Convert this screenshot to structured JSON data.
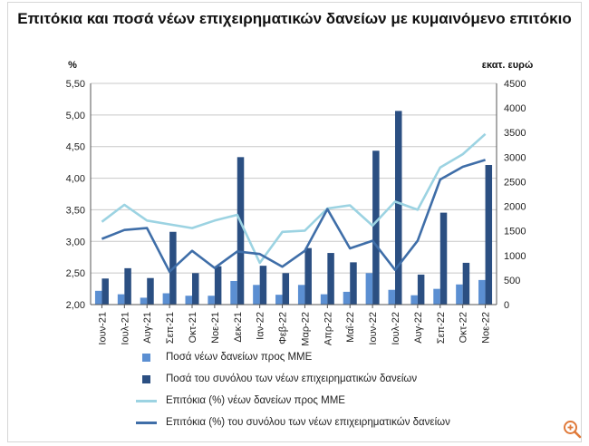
{
  "title": "Επιτόκια και ποσά νέων επιχειρηματικών δανείων με κυμαινόμενο επιτόκιο",
  "left_unit": "%",
  "right_unit": "εκατ. ευρώ",
  "zoom_icon": "zoom-in-icon",
  "chart_data": {
    "type": "bar-line-combo",
    "categories": [
      "Ιουν-21",
      "Ιουλ-21",
      "Αυγ-21",
      "Σεπ-21",
      "Οκτ-21",
      "Νοε-21",
      "Δεκ-21",
      "Ιαν-22",
      "Φεβ-22",
      "Μαρ-22",
      "Απρ-22",
      "Μαΐ-22",
      "Ιουν-22",
      "Ιουλ-22",
      "Αυγ-22",
      "Σεπ-22",
      "Οκτ-22",
      "Νοε-22"
    ],
    "left_axis": {
      "ylim": [
        2.0,
        5.5
      ],
      "ticks": [
        "2,00",
        "2,50",
        "3,00",
        "3,50",
        "4,00",
        "4,50",
        "5,00",
        "5,50"
      ]
    },
    "right_axis": {
      "ylim": [
        0,
        4500
      ],
      "ticks": [
        "0",
        "500",
        "1000",
        "1500",
        "2000",
        "2500",
        "3000",
        "3500",
        "4000",
        "4500"
      ]
    },
    "series": [
      {
        "name": "Ποσά νέων δανείων προς ΜΜΕ",
        "kind": "bar",
        "axis": "right",
        "color": "#5b8fd2",
        "values": [
          280,
          210,
          140,
          230,
          180,
          180,
          480,
          400,
          200,
          400,
          210,
          260,
          640,
          300,
          190,
          320,
          410,
          500
        ]
      },
      {
        "name": "Ποσά του συνόλου των νέων επιχειρηματικών δανείων",
        "kind": "bar",
        "axis": "right",
        "color": "#2b4f82",
        "values": [
          530,
          740,
          540,
          1480,
          640,
          780,
          3000,
          790,
          640,
          1150,
          1050,
          860,
          3130,
          3940,
          610,
          1870,
          850,
          2840
        ]
      },
      {
        "name": "Επιτόκια (%) νέων δανείων προς ΜΜΕ",
        "kind": "line",
        "axis": "left",
        "color": "#9cd3e2",
        "values": [
          3.31,
          3.58,
          3.33,
          3.27,
          3.21,
          3.33,
          3.42,
          2.66,
          3.15,
          3.17,
          3.52,
          3.57,
          3.25,
          3.63,
          3.5,
          4.17,
          4.38,
          4.7
        ]
      },
      {
        "name": "Επιτόκια (%) του συνόλου των νέων επιχειρηματικών δανείων",
        "kind": "line",
        "axis": "left",
        "color": "#3f6ea8",
        "values": [
          3.04,
          3.18,
          3.21,
          2.52,
          2.85,
          2.58,
          2.84,
          2.8,
          2.6,
          2.85,
          3.51,
          2.89,
          3.01,
          2.55,
          3.01,
          3.98,
          4.18,
          4.29
        ]
      }
    ],
    "grid": "horizontal",
    "legend_position": "bottom"
  }
}
